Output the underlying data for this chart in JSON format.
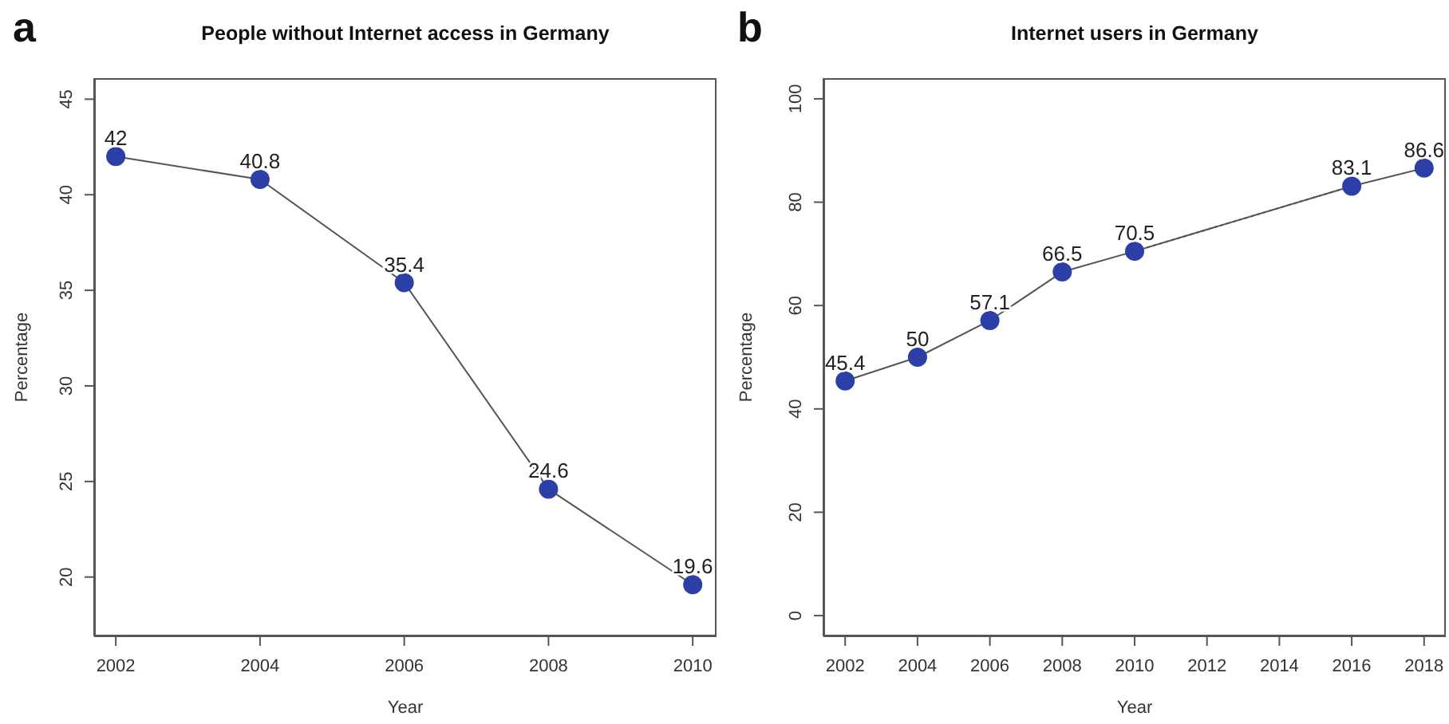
{
  "chart_data": [
    {
      "type": "line",
      "title": "People without Internet access in Germany",
      "xlabel": "Year",
      "ylabel": "Percentage",
      "annotations": [
        "a"
      ],
      "xlim": [
        2001.7,
        2010.33
      ],
      "xticks": [
        2002,
        2004,
        2006,
        2008,
        2010
      ],
      "ylim": [
        16.9,
        46.1
      ],
      "yticks": [
        20,
        25,
        30,
        35,
        40,
        45
      ],
      "data_labels": true,
      "series": [
        {
          "color": "#2b3fa6",
          "marker": "circle",
          "line_style": "solid",
          "x": [
            2002,
            2004,
            2006,
            2008,
            2010
          ],
          "values": [
            42,
            40.8,
            35.4,
            24.6,
            19.6
          ]
        }
      ]
    },
    {
      "type": "line",
      "title": "Internet users in Germany",
      "xlabel": "Year",
      "ylabel": "Percentage",
      "annotations": [
        "b"
      ],
      "xlim": [
        2001.4,
        2018.6
      ],
      "xticks": [
        2002,
        2004,
        2006,
        2008,
        2010,
        2012,
        2014,
        2016,
        2018
      ],
      "ylim": [
        -4,
        104
      ],
      "yticks": [
        0,
        20,
        40,
        60,
        80,
        100
      ],
      "data_labels": true,
      "series": [
        {
          "color": "#2b3fa6",
          "marker": "circle",
          "line_style": "solid",
          "x": [
            2002,
            2004,
            2006,
            2008,
            2010,
            2016,
            2018
          ],
          "values": [
            45.4,
            50,
            57.1,
            66.5,
            70.5,
            83.1,
            86.6
          ]
        },
        {
          "color": "#555555",
          "marker": "none",
          "line_style": "dotted",
          "data_labels": false,
          "x": [
            2010,
            2016
          ],
          "values": [
            70.5,
            83.1
          ]
        }
      ]
    }
  ]
}
